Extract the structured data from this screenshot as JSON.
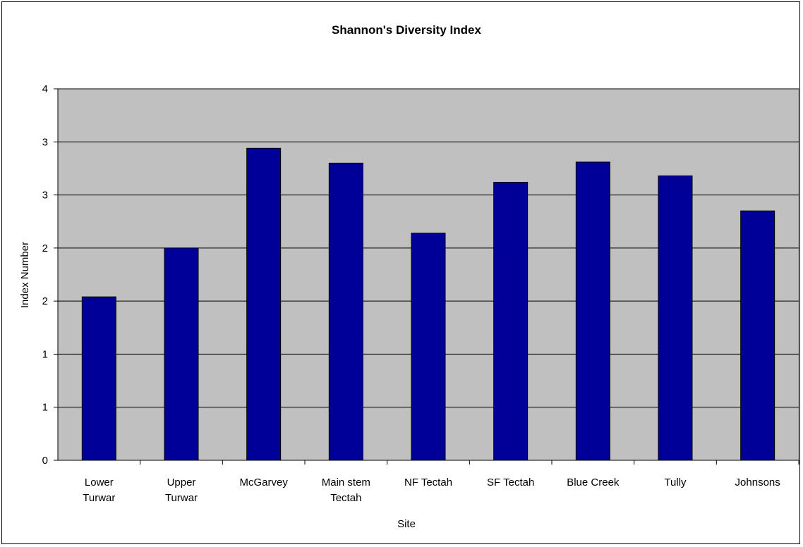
{
  "chart_data": {
    "type": "bar",
    "title": "Shannon's Diversity Index",
    "xlabel": "Site",
    "ylabel": "Index Number",
    "categories": [
      [
        "Lower",
        "Turwar"
      ],
      [
        "Upper",
        "Turwar"
      ],
      [
        "McGarvey"
      ],
      [
        "Main stem",
        "Tectah"
      ],
      [
        "NF Tectah"
      ],
      [
        "SF Tectah"
      ],
      [
        "Blue Creek"
      ],
      [
        "Tully"
      ],
      [
        "Johnsons"
      ]
    ],
    "values": [
      1.54,
      2.0,
      2.94,
      2.8,
      2.14,
      2.62,
      2.81,
      2.68,
      2.35
    ],
    "ylim": [
      0,
      3.5
    ],
    "yticks": [
      0,
      0.5,
      1.0,
      1.5,
      2.0,
      2.5,
      3.0,
      3.5
    ],
    "ytick_labels": [
      "0",
      "1",
      "1",
      "2",
      "2",
      "3",
      "3",
      "4"
    ],
    "grid": true,
    "colors": {
      "bar": "#000099",
      "plot_background": "#c0c0c0",
      "gridline": "#000000"
    }
  }
}
